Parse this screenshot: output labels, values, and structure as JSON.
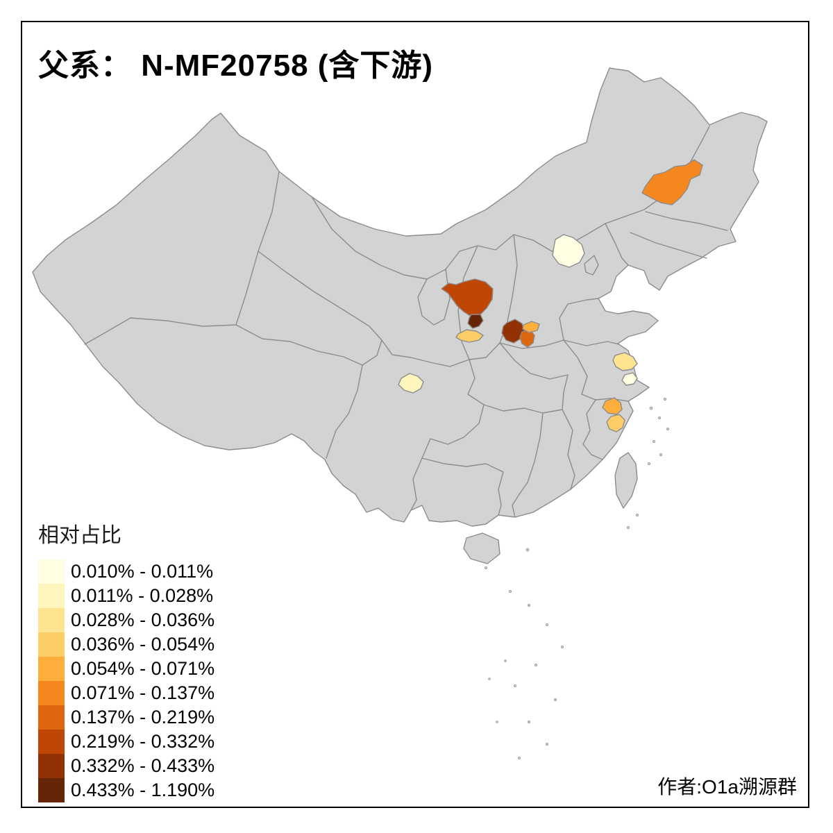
{
  "title": "父系： N-MF20758 (含下游)",
  "attribution": "作者:O1a溯源群",
  "legend": {
    "title": "相对占比",
    "items": [
      {
        "range": "0.010% - 0.011%",
        "color": "#FFFEE3"
      },
      {
        "range": "0.011% - 0.028%",
        "color": "#FEF5BC"
      },
      {
        "range": "0.028% - 0.036%",
        "color": "#FEE391"
      },
      {
        "range": "0.036% - 0.054%",
        "color": "#FDCE67"
      },
      {
        "range": "0.054% - 0.071%",
        "color": "#FDAE3C"
      },
      {
        "range": "0.071% - 0.137%",
        "color": "#F5871F"
      },
      {
        "range": "0.137% - 0.219%",
        "color": "#DE660E"
      },
      {
        "range": "0.219% - 0.332%",
        "color": "#BF4604"
      },
      {
        "range": "0.332% - 0.433%",
        "color": "#923204"
      },
      {
        "range": "0.433% - 1.190%",
        "color": "#662506"
      }
    ]
  },
  "map": {
    "land_color": "#D3D3D3",
    "border_color": "#8C8C8C",
    "background": "#FFFFFF"
  },
  "chart_data": {
    "type": "choropleth",
    "title": "父系： N-MF20758 (含下游)",
    "legend_title": "相对占比",
    "regions": [
      {
        "id": "northeast",
        "bin": "0.071% - 0.137%",
        "color": "#F5871F"
      },
      {
        "id": "beijing",
        "bin": "0.010% - 0.011%",
        "color": "#FFFEE3"
      },
      {
        "id": "shanxi-main",
        "bin": "0.219% - 0.332%",
        "color": "#BF4604"
      },
      {
        "id": "shanxi-south",
        "bin": "0.433% - 1.190%",
        "color": "#662506"
      },
      {
        "id": "henan-west",
        "bin": "0.036% - 0.054%",
        "color": "#FDCE67"
      },
      {
        "id": "henan-main",
        "bin": "0.332% - 0.433%",
        "color": "#923204"
      },
      {
        "id": "henan-east",
        "bin": "0.137% - 0.219%",
        "color": "#DE660E"
      },
      {
        "id": "henan-north",
        "bin": "0.054% - 0.071%",
        "color": "#FDAE3C"
      },
      {
        "id": "sichuan",
        "bin": "0.011% - 0.028%",
        "color": "#FEF5BC"
      },
      {
        "id": "jiangsu",
        "bin": "0.028% - 0.036%",
        "color": "#FEE391"
      },
      {
        "id": "shanghai",
        "bin": "0.010% - 0.011%",
        "color": "#FFFEE3"
      },
      {
        "id": "zhejiang-north",
        "bin": "0.054% - 0.071%",
        "color": "#FDAE3C"
      },
      {
        "id": "zhejiang-south",
        "bin": "0.036% - 0.054%",
        "color": "#FDCE67"
      }
    ]
  }
}
